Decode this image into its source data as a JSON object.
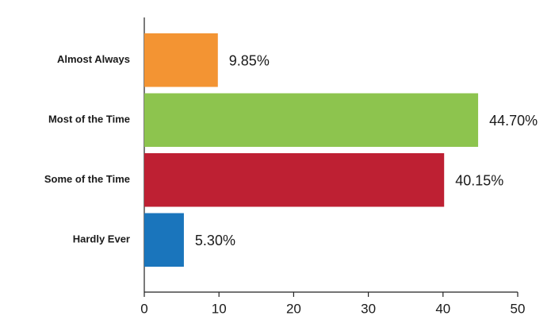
{
  "chart_data": {
    "type": "hbar",
    "categories": [
      "Almost Always",
      "Most of the Time",
      "Some of the Time",
      "Hardly Ever"
    ],
    "values": [
      9.85,
      44.7,
      40.15,
      5.3
    ],
    "value_labels": [
      "9.85%",
      "44.70%",
      "40.15%",
      "5.30%"
    ],
    "colors": [
      "#f39433",
      "#8dc44e",
      "#be2033",
      "#1a75bc"
    ],
    "xlim": [
      0,
      50
    ],
    "xticks": [
      0,
      10,
      20,
      30,
      40,
      50
    ]
  }
}
